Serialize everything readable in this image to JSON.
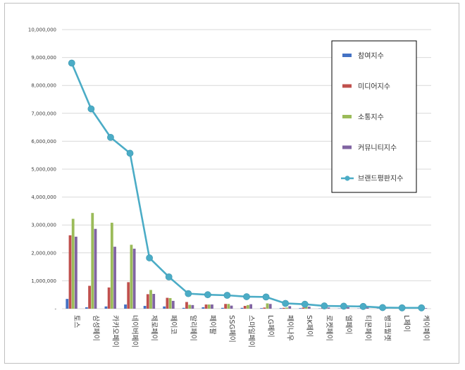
{
  "chart_data": {
    "type": "bar",
    "categories": [
      "토스",
      "삼성페이",
      "카카오페이",
      "네이버페이",
      "제로페이",
      "페이코",
      "알리페이",
      "페이팔",
      "SSG페이",
      "스마일페이",
      "LG페이",
      "페이나우",
      "SK페이",
      "로켓페이",
      "엘페이",
      "티몬페이",
      "뱅크월렛",
      "L페이",
      "케이페이"
    ],
    "series": [
      {
        "name": "참여지수",
        "kind": "bar",
        "color": "#4472c4",
        "values": [
          350000,
          50000,
          80000,
          150000,
          100000,
          80000,
          30000,
          50000,
          30000,
          30000,
          20000,
          20000,
          20000,
          10000,
          10000,
          10000,
          10000,
          5000,
          5000
        ]
      },
      {
        "name": "미디어지수",
        "kind": "bar",
        "color": "#c0504d",
        "values": [
          2630000,
          820000,
          760000,
          950000,
          520000,
          390000,
          240000,
          150000,
          170000,
          100000,
          40000,
          30000,
          40000,
          30000,
          20000,
          30000,
          10000,
          10000,
          10000
        ]
      },
      {
        "name": "소통지수",
        "kind": "bar",
        "color": "#9bbb59",
        "values": [
          3220000,
          3430000,
          3080000,
          2290000,
          670000,
          380000,
          140000,
          150000,
          170000,
          130000,
          190000,
          40000,
          70000,
          60000,
          40000,
          30000,
          20000,
          10000,
          10000
        ]
      },
      {
        "name": "커뮤니티지수",
        "kind": "bar",
        "color": "#8064a2",
        "values": [
          2580000,
          2860000,
          2220000,
          2150000,
          530000,
          280000,
          130000,
          150000,
          110000,
          160000,
          170000,
          90000,
          70000,
          40000,
          50000,
          40000,
          20000,
          20000,
          20000
        ]
      },
      {
        "name": "브랜드평판지수",
        "kind": "line",
        "color": "#4bacc6",
        "values": [
          8800000,
          7160000,
          6140000,
          5570000,
          1820000,
          1140000,
          540000,
          500000,
          480000,
          430000,
          420000,
          190000,
          160000,
          100000,
          90000,
          80000,
          40000,
          30000,
          30000
        ]
      }
    ],
    "yaxis": {
      "min": 0,
      "max": 10000000,
      "ticks": [
        0,
        1000000,
        2000000,
        3000000,
        4000000,
        5000000,
        6000000,
        7000000,
        8000000,
        9000000,
        10000000
      ],
      "tick_labels": [
        "-",
        "1,000,000",
        "2,000,000",
        "3,000,000",
        "4,000,000",
        "5,000,000",
        "6,000,000",
        "7,000,000",
        "8,000,000",
        "9,000,000",
        "10,000,000"
      ]
    },
    "grid": true,
    "legend_position": "right"
  }
}
